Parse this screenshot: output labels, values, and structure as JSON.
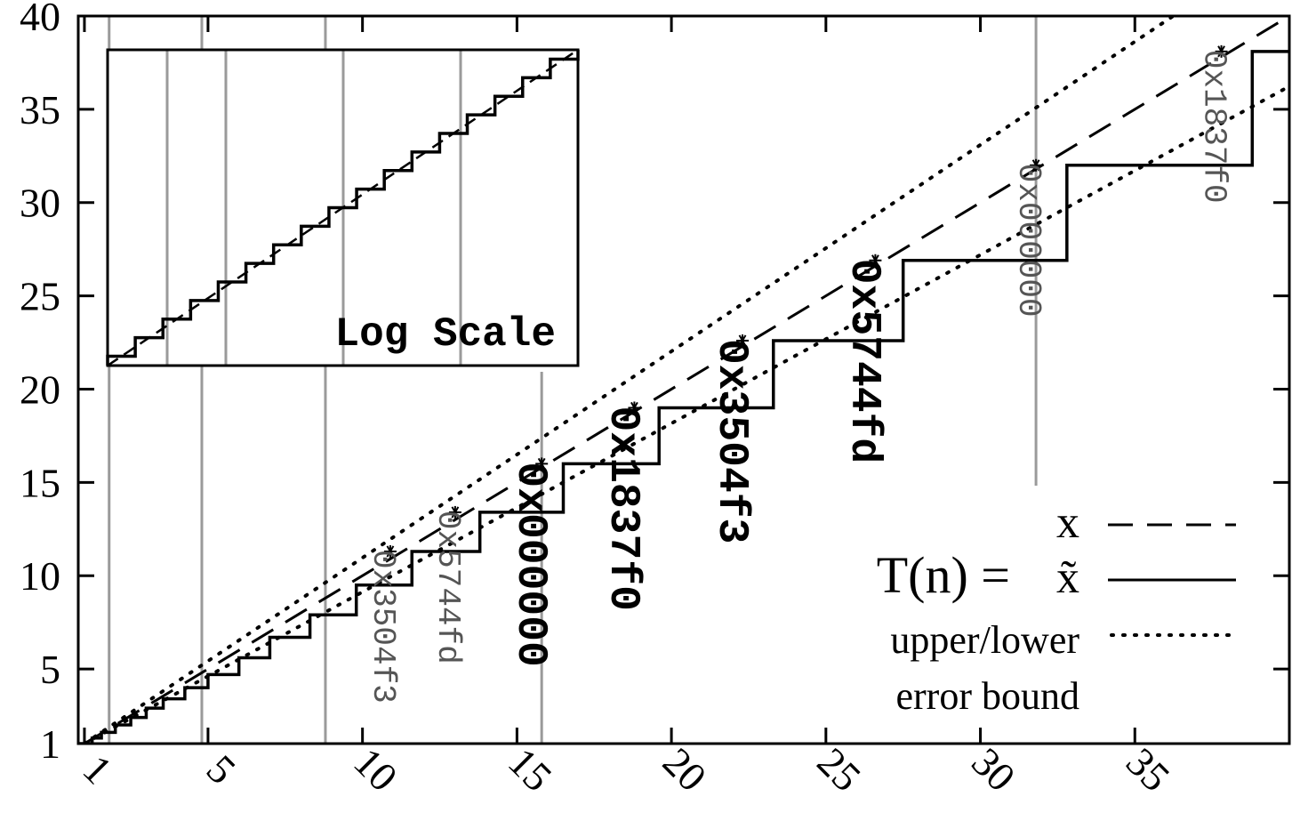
{
  "chart_data": {
    "type": "line",
    "x_range": [
      0.8,
      40
    ],
    "y_range": [
      1,
      40
    ],
    "x_ticks": [
      {
        "value": 1,
        "label": "1"
      },
      {
        "value": 5,
        "label": "5"
      },
      {
        "value": 10,
        "label": "10"
      },
      {
        "value": 15,
        "label": "15"
      },
      {
        "value": 20,
        "label": "20"
      },
      {
        "value": 25,
        "label": "25"
      },
      {
        "value": 30,
        "label": "30"
      },
      {
        "value": 35,
        "label": "35"
      }
    ],
    "y_ticks": [
      {
        "value": 1,
        "label": "1"
      },
      {
        "value": 5,
        "label": "5"
      },
      {
        "value": 10,
        "label": "10"
      },
      {
        "value": 15,
        "label": "15"
      },
      {
        "value": 20,
        "label": "20"
      },
      {
        "value": 25,
        "label": "25"
      },
      {
        "value": 30,
        "label": "30"
      },
      {
        "value": 35,
        "label": "35"
      },
      {
        "value": 40,
        "label": "40"
      }
    ],
    "grid_x": [
      1.8,
      4.8,
      8.8,
      15.8,
      31.8
    ],
    "bound_factor": 1.104,
    "series": [
      {
        "name": "x",
        "style": "dashed",
        "kind": "identity"
      },
      {
        "name": "x̃",
        "style": "solid",
        "kind": "step",
        "steps": [
          {
            "x_end": 1.25,
            "y": 1.0
          },
          {
            "x_end": 1.55,
            "y": 1.3
          },
          {
            "x_end": 2.0,
            "y": 1.6
          },
          {
            "x_end": 2.5,
            "y": 2.0
          },
          {
            "x_end": 3.0,
            "y": 2.4
          },
          {
            "x_end": 3.55,
            "y": 2.9
          },
          {
            "x_end": 4.25,
            "y": 3.4
          },
          {
            "x_end": 5.0,
            "y": 4.0
          },
          {
            "x_end": 6.0,
            "y": 4.7
          },
          {
            "x_end": 7.0,
            "y": 5.6
          },
          {
            "x_end": 8.3,
            "y": 6.7
          },
          {
            "x_end": 9.8,
            "y": 7.9
          },
          {
            "x_end": 11.6,
            "y": 9.5
          },
          {
            "x_end": 13.8,
            "y": 11.3
          },
          {
            "x_end": 16.5,
            "y": 13.4
          },
          {
            "x_end": 19.6,
            "y": 16.0
          },
          {
            "x_end": 23.3,
            "y": 19.0
          },
          {
            "x_end": 27.5,
            "y": 22.6
          },
          {
            "x_end": 32.8,
            "y": 26.9
          },
          {
            "x_end": 38.8,
            "y": 32.0
          },
          {
            "x_end": 40.0,
            "y": 38.1
          }
        ]
      },
      {
        "name": "upper/lower error bound",
        "style": "dotted",
        "kind": "bounds"
      }
    ],
    "markers": [
      {
        "x": 10.9,
        "y": 11.3,
        "label": "0x3504f3",
        "weight": "normal"
      },
      {
        "x": 13.0,
        "y": 13.4,
        "label": "0x5744fd",
        "weight": "normal"
      },
      {
        "x": 15.8,
        "y": 16.0,
        "label": "0x000000",
        "weight": "bold"
      },
      {
        "x": 18.8,
        "y": 19.0,
        "label": "0x1837f0",
        "weight": "bold"
      },
      {
        "x": 22.3,
        "y": 22.6,
        "label": "0x3504f3",
        "weight": "bold"
      },
      {
        "x": 26.6,
        "y": 26.9,
        "label": "0x5744fd",
        "weight": "bold"
      },
      {
        "x": 31.8,
        "y": 32.0,
        "label": "0x000000",
        "weight": "normal"
      },
      {
        "x": 37.8,
        "y": 38.1,
        "label": "0x1837f0",
        "weight": "normal"
      }
    ],
    "inset": {
      "title": "Log Scale",
      "steps": 17
    },
    "legend": {
      "heading": "T(n) =",
      "entries": [
        {
          "label": "x",
          "style": "dashed"
        },
        {
          "label": "x̃",
          "style": "solid"
        },
        {
          "label": "upper/lower",
          "style": "dotted"
        },
        {
          "label": "error bound",
          "style": "none"
        }
      ],
      "position": "bottom-right"
    },
    "grid": "partial vertical lines"
  }
}
